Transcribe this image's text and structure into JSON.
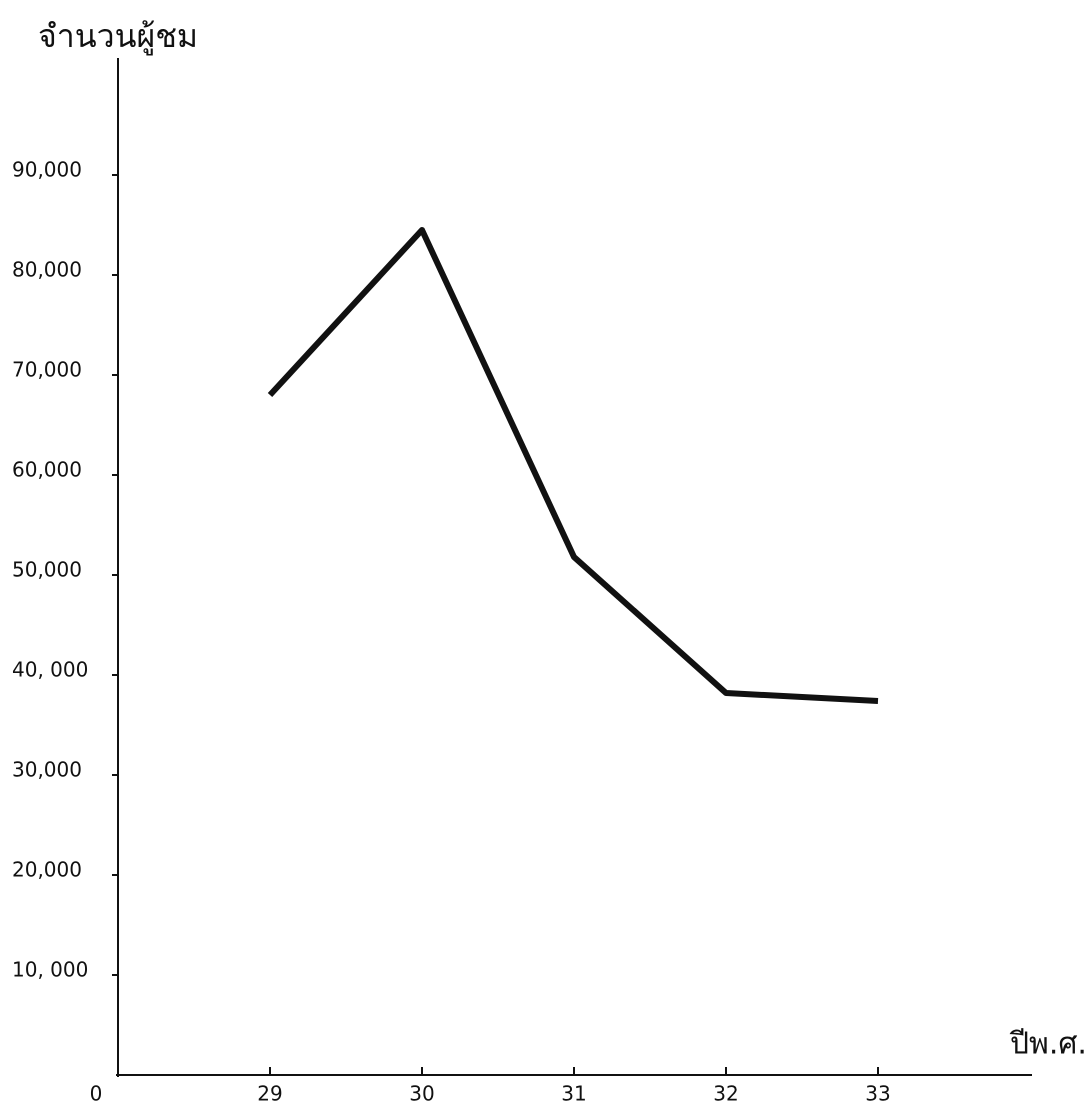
{
  "chart_data": {
    "type": "line",
    "y_label": "จำนวนผู้ชม",
    "x_label": "ปีพ.ศ.",
    "x": [
      29,
      30,
      31,
      32,
      33
    ],
    "values": [
      68000,
      84500,
      51800,
      38200,
      37400
    ],
    "color": "#111111",
    "xlim": [
      28,
      34
    ],
    "xticks": [
      29,
      30,
      31,
      32,
      33
    ],
    "ylim": [
      0,
      100000
    ],
    "yticks": [
      0,
      {
        "value": 10000,
        "label": "10, 000"
      },
      {
        "value": 20000,
        "label": "20,000"
      },
      {
        "value": 30000,
        "label": "30,000"
      },
      {
        "value": 40000,
        "label": "40, 000"
      },
      {
        "value": 50000,
        "label": "50,000"
      },
      {
        "value": 60000,
        "label": "60,000"
      },
      {
        "value": 70000,
        "label": "70,000"
      },
      {
        "value": 80000,
        "label": "80,000"
      },
      {
        "value": 90000,
        "label": "90,000"
      }
    ],
    "grid": false
  }
}
